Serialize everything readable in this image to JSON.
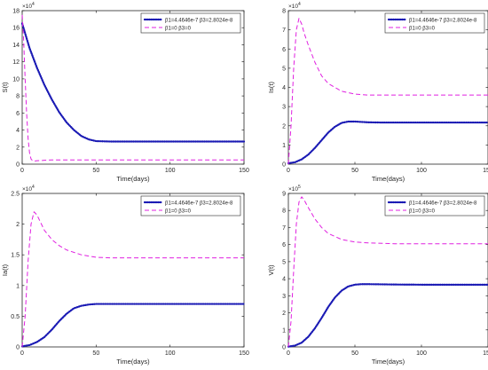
{
  "chart_data": [
    {
      "type": "line",
      "ylabel": "S(t)",
      "xlabel": "Time(days)",
      "xlim": [
        0,
        150
      ],
      "ylim": [
        0,
        18
      ],
      "xticks": [
        0,
        50,
        100,
        150
      ],
      "yticks": [
        0,
        2,
        4,
        6,
        8,
        10,
        12,
        14,
        16,
        18
      ],
      "multiplier": "×10^4",
      "legend_position": "top-right",
      "series": [
        {
          "name": "β1=4.4646e-7  β3=2.8024e-8",
          "color": "#1a1ab4",
          "style": "dotted",
          "x": [
            0,
            5,
            10,
            15,
            20,
            25,
            30,
            35,
            40,
            45,
            50,
            60,
            80,
            100,
            120,
            150
          ],
          "y": [
            16.5,
            13.6,
            11.3,
            9.3,
            7.6,
            6.1,
            4.9,
            4.0,
            3.3,
            2.9,
            2.7,
            2.65,
            2.65,
            2.65,
            2.65,
            2.65
          ]
        },
        {
          "name": "β1=0  β3=0",
          "color": "#e020e0",
          "style": "dashed",
          "x": [
            0,
            1,
            2,
            3,
            4,
            5,
            6,
            7,
            8,
            10,
            15,
            20,
            40,
            60,
            100,
            150
          ],
          "y": [
            17.5,
            14.5,
            10.0,
            6.0,
            3.0,
            1.3,
            0.6,
            0.4,
            0.35,
            0.4,
            0.45,
            0.5,
            0.5,
            0.5,
            0.5,
            0.5
          ]
        }
      ]
    },
    {
      "type": "line",
      "ylabel": "Is(t)",
      "xlabel": "Time(days)",
      "xlim": [
        0,
        150
      ],
      "ylim": [
        0,
        8
      ],
      "xticks": [
        0,
        50,
        100,
        150
      ],
      "yticks": [
        0,
        1,
        2,
        3,
        4,
        5,
        6,
        7,
        8
      ],
      "multiplier": "×10^4",
      "legend_position": "top-right",
      "series": [
        {
          "name": "β1=4.4646e-7  β3=2.8024e-8",
          "color": "#1a1ab4",
          "style": "dotted",
          "x": [
            0,
            5,
            10,
            15,
            20,
            25,
            30,
            35,
            40,
            45,
            50,
            55,
            60,
            70,
            80,
            100,
            120,
            150
          ],
          "y": [
            0.05,
            0.1,
            0.25,
            0.5,
            0.85,
            1.25,
            1.65,
            1.95,
            2.15,
            2.22,
            2.22,
            2.2,
            2.18,
            2.17,
            2.17,
            2.17,
            2.17,
            2.17
          ]
        },
        {
          "name": "β1=0  β3=0",
          "color": "#e020e0",
          "style": "dashed",
          "x": [
            0,
            2,
            4,
            6,
            8,
            10,
            12,
            15,
            20,
            25,
            30,
            40,
            50,
            60,
            80,
            100,
            150
          ],
          "y": [
            0,
            2.0,
            5.0,
            7.0,
            7.6,
            7.3,
            6.8,
            6.2,
            5.3,
            4.6,
            4.2,
            3.8,
            3.65,
            3.6,
            3.6,
            3.6,
            3.6
          ]
        }
      ]
    },
    {
      "type": "line",
      "ylabel": "Ia(t)",
      "xlabel": "Time(days)",
      "xlim": [
        0,
        150
      ],
      "ylim": [
        0,
        2.5
      ],
      "xticks": [
        0,
        50,
        100,
        150
      ],
      "yticks": [
        0,
        0.5,
        1,
        1.5,
        2,
        2.5
      ],
      "multiplier": "×10^4",
      "legend_position": "top-right",
      "series": [
        {
          "name": "β1=4.4646e-7  β3=2.8024e-8",
          "color": "#1a1ab4",
          "style": "dotted",
          "x": [
            0,
            5,
            10,
            15,
            20,
            25,
            30,
            35,
            40,
            45,
            50,
            60,
            80,
            100,
            120,
            150
          ],
          "y": [
            0.01,
            0.03,
            0.08,
            0.16,
            0.28,
            0.42,
            0.54,
            0.63,
            0.67,
            0.69,
            0.7,
            0.7,
            0.7,
            0.7,
            0.7,
            0.7
          ]
        },
        {
          "name": "β1=0  β3=0",
          "color": "#e020e0",
          "style": "dashed",
          "x": [
            0,
            2,
            4,
            6,
            8,
            10,
            12,
            15,
            20,
            25,
            30,
            40,
            50,
            60,
            80,
            100,
            150
          ],
          "y": [
            0,
            0.5,
            1.4,
            2.0,
            2.2,
            2.15,
            2.05,
            1.9,
            1.75,
            1.65,
            1.58,
            1.5,
            1.46,
            1.45,
            1.45,
            1.45,
            1.45
          ]
        }
      ]
    },
    {
      "type": "line",
      "ylabel": "V(t)",
      "xlabel": "Time(days)",
      "xlim": [
        0,
        150
      ],
      "ylim": [
        0,
        9
      ],
      "xticks": [
        0,
        50,
        100,
        150
      ],
      "yticks": [
        0,
        1,
        2,
        3,
        4,
        5,
        6,
        7,
        8,
        9
      ],
      "multiplier": "×10^5",
      "legend_position": "top-right",
      "series": [
        {
          "name": "β1=4.4646e-7  β3=2.8024e-8",
          "color": "#1a1ab4",
          "style": "dotted",
          "x": [
            0,
            5,
            10,
            15,
            20,
            25,
            30,
            35,
            40,
            45,
            50,
            55,
            60,
            70,
            80,
            100,
            120,
            150
          ],
          "y": [
            0.02,
            0.08,
            0.25,
            0.6,
            1.1,
            1.7,
            2.35,
            2.9,
            3.3,
            3.55,
            3.65,
            3.68,
            3.68,
            3.67,
            3.66,
            3.65,
            3.65,
            3.65
          ]
        },
        {
          "name": "β1=0  β3=0",
          "color": "#e020e0",
          "style": "dashed",
          "x": [
            0,
            2,
            4,
            6,
            8,
            10,
            12,
            14,
            17,
            20,
            25,
            30,
            40,
            50,
            60,
            80,
            100,
            150
          ],
          "y": [
            0,
            1.5,
            4.5,
            7.2,
            8.5,
            8.8,
            8.6,
            8.3,
            7.9,
            7.5,
            7.0,
            6.65,
            6.3,
            6.15,
            6.1,
            6.05,
            6.05,
            6.05
          ]
        }
      ]
    }
  ]
}
